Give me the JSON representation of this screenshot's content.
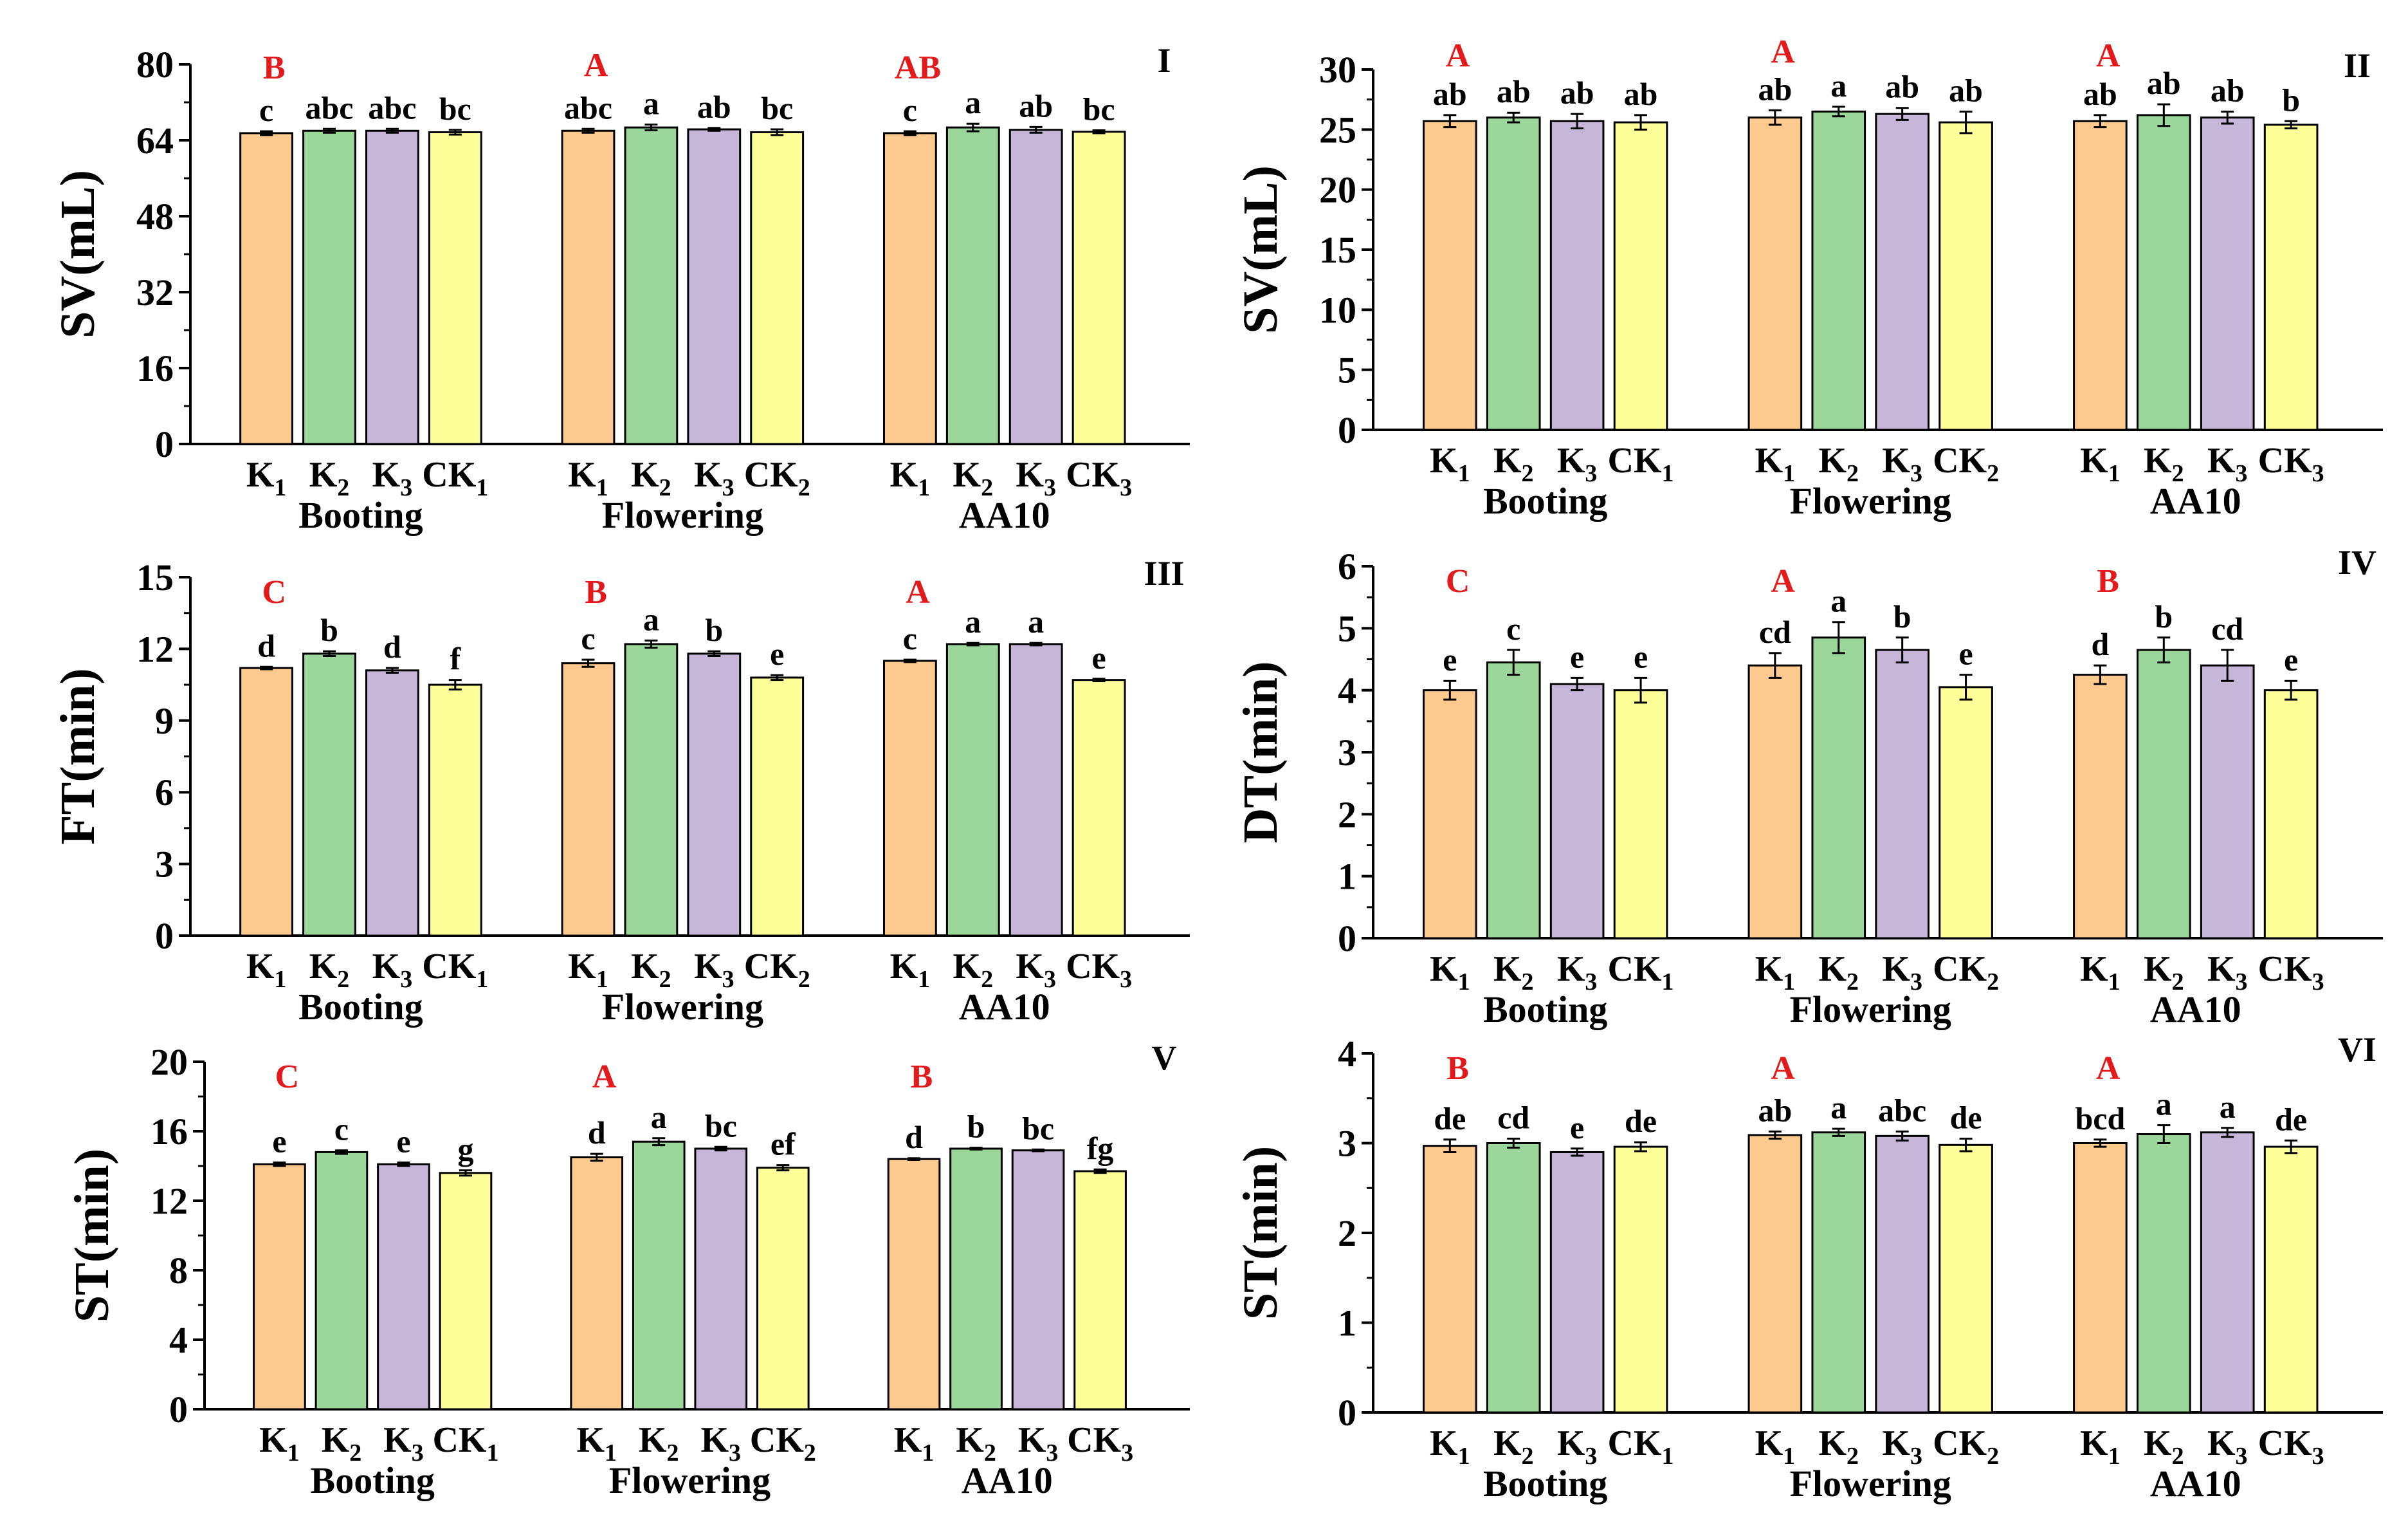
{
  "colors": {
    "K1": "#fcc98f",
    "K2": "#9bd69b",
    "K3": "#c6b6d8",
    "CK": "#ffff99",
    "group_letter": "#e31a1c"
  },
  "chart_data": [
    {
      "type": "bar",
      "panel_id": "I",
      "ylabel": "SV(mL)",
      "ylim": [
        0,
        80
      ],
      "yticks": [
        "0",
        "16",
        "32",
        "48",
        "64",
        "80"
      ],
      "groups": [
        {
          "name": "Booting",
          "group_letter": "B",
          "bars": [
            {
              "label": "K",
              "sub": "1",
              "value": 65.5,
              "err": 0.4,
              "letter": "c"
            },
            {
              "label": "K",
              "sub": "2",
              "value": 66.0,
              "err": 0.4,
              "letter": "abc"
            },
            {
              "label": "K",
              "sub": "3",
              "value": 66.0,
              "err": 0.4,
              "letter": "abc"
            },
            {
              "label": "CK",
              "sub": "1",
              "value": 65.7,
              "err": 0.5,
              "letter": "bc"
            }
          ]
        },
        {
          "name": "Flowering",
          "group_letter": "A",
          "bars": [
            {
              "label": "K",
              "sub": "1",
              "value": 66.0,
              "err": 0.4,
              "letter": "abc"
            },
            {
              "label": "K",
              "sub": "2",
              "value": 66.7,
              "err": 0.6,
              "letter": "a"
            },
            {
              "label": "K",
              "sub": "3",
              "value": 66.3,
              "err": 0.3,
              "letter": "ab"
            },
            {
              "label": "CK",
              "sub": "2",
              "value": 65.7,
              "err": 0.6,
              "letter": "bc"
            }
          ]
        },
        {
          "name": "AA10",
          "group_letter": "AB",
          "bars": [
            {
              "label": "K",
              "sub": "1",
              "value": 65.5,
              "err": 0.4,
              "letter": "c"
            },
            {
              "label": "K",
              "sub": "2",
              "value": 66.7,
              "err": 0.8,
              "letter": "a"
            },
            {
              "label": "K",
              "sub": "3",
              "value": 66.2,
              "err": 0.6,
              "letter": "ab"
            },
            {
              "label": "CK",
              "sub": "3",
              "value": 65.8,
              "err": 0.3,
              "letter": "bc"
            }
          ]
        }
      ]
    },
    {
      "type": "bar",
      "panel_id": "II",
      "ylabel": "SV(mL)",
      "ylim": [
        0,
        30
      ],
      "yticks": [
        "0",
        "5",
        "10",
        "15",
        "20",
        "25",
        "30"
      ],
      "groups": [
        {
          "name": "Booting",
          "group_letter": "A",
          "bars": [
            {
              "label": "K",
              "sub": "1",
              "value": 25.7,
              "err": 0.5,
              "letter": "ab"
            },
            {
              "label": "K",
              "sub": "2",
              "value": 26.0,
              "err": 0.4,
              "letter": "ab"
            },
            {
              "label": "K",
              "sub": "3",
              "value": 25.7,
              "err": 0.6,
              "letter": "ab"
            },
            {
              "label": "CK",
              "sub": "1",
              "value": 25.6,
              "err": 0.6,
              "letter": "ab"
            }
          ]
        },
        {
          "name": "Flowering",
          "group_letter": "A",
          "bars": [
            {
              "label": "K",
              "sub": "1",
              "value": 26.0,
              "err": 0.6,
              "letter": "ab"
            },
            {
              "label": "K",
              "sub": "2",
              "value": 26.5,
              "err": 0.4,
              "letter": "a"
            },
            {
              "label": "K",
              "sub": "3",
              "value": 26.3,
              "err": 0.5,
              "letter": "ab"
            },
            {
              "label": "CK",
              "sub": "2",
              "value": 25.6,
              "err": 0.9,
              "letter": "ab"
            }
          ]
        },
        {
          "name": "AA10",
          "group_letter": "A",
          "bars": [
            {
              "label": "K",
              "sub": "1",
              "value": 25.7,
              "err": 0.5,
              "letter": "ab"
            },
            {
              "label": "K",
              "sub": "2",
              "value": 26.2,
              "err": 0.9,
              "letter": "ab"
            },
            {
              "label": "K",
              "sub": "3",
              "value": 26.0,
              "err": 0.5,
              "letter": "ab"
            },
            {
              "label": "CK",
              "sub": "3",
              "value": 25.4,
              "err": 0.3,
              "letter": "b"
            }
          ]
        }
      ]
    },
    {
      "type": "bar",
      "panel_id": "III",
      "ylabel": "FT(min)",
      "ylim": [
        0,
        15
      ],
      "yticks": [
        "0",
        "3",
        "6",
        "9",
        "12",
        "15"
      ],
      "groups": [
        {
          "name": "Booting",
          "group_letter": "C",
          "bars": [
            {
              "label": "K",
              "sub": "1",
              "value": 11.2,
              "err": 0.05,
              "letter": "d"
            },
            {
              "label": "K",
              "sub": "2",
              "value": 11.8,
              "err": 0.1,
              "letter": "b"
            },
            {
              "label": "K",
              "sub": "3",
              "value": 11.1,
              "err": 0.1,
              "letter": "d"
            },
            {
              "label": "CK",
              "sub": "1",
              "value": 10.5,
              "err": 0.2,
              "letter": "f"
            }
          ]
        },
        {
          "name": "Flowering",
          "group_letter": "B",
          "bars": [
            {
              "label": "K",
              "sub": "1",
              "value": 11.4,
              "err": 0.15,
              "letter": "c"
            },
            {
              "label": "K",
              "sub": "2",
              "value": 12.2,
              "err": 0.15,
              "letter": "a"
            },
            {
              "label": "K",
              "sub": "3",
              "value": 11.8,
              "err": 0.1,
              "letter": "b"
            },
            {
              "label": "CK",
              "sub": "2",
              "value": 10.8,
              "err": 0.1,
              "letter": "e"
            }
          ]
        },
        {
          "name": "AA10",
          "group_letter": "A",
          "bars": [
            {
              "label": "K",
              "sub": "1",
              "value": 11.5,
              "err": 0.05,
              "letter": "c"
            },
            {
              "label": "K",
              "sub": "2",
              "value": 12.2,
              "err": 0.05,
              "letter": "a"
            },
            {
              "label": "K",
              "sub": "3",
              "value": 12.2,
              "err": 0.05,
              "letter": "a"
            },
            {
              "label": "CK",
              "sub": "3",
              "value": 10.7,
              "err": 0.05,
              "letter": "e"
            }
          ]
        }
      ]
    },
    {
      "type": "bar",
      "panel_id": "IV",
      "ylabel": "DT(min)",
      "ylim": [
        0,
        6
      ],
      "yticks": [
        "0",
        "1",
        "2",
        "3",
        "4",
        "5",
        "6"
      ],
      "groups": [
        {
          "name": "Booting",
          "group_letter": "C",
          "bars": [
            {
              "label": "K",
              "sub": "1",
              "value": 4.0,
              "err": 0.15,
              "letter": "e"
            },
            {
              "label": "K",
              "sub": "2",
              "value": 4.45,
              "err": 0.2,
              "letter": "c"
            },
            {
              "label": "K",
              "sub": "3",
              "value": 4.1,
              "err": 0.1,
              "letter": "e"
            },
            {
              "label": "CK",
              "sub": "1",
              "value": 4.0,
              "err": 0.2,
              "letter": "e"
            }
          ]
        },
        {
          "name": "Flowering",
          "group_letter": "A",
          "bars": [
            {
              "label": "K",
              "sub": "1",
              "value": 4.4,
              "err": 0.2,
              "letter": "cd"
            },
            {
              "label": "K",
              "sub": "2",
              "value": 4.85,
              "err": 0.25,
              "letter": "a"
            },
            {
              "label": "K",
              "sub": "3",
              "value": 4.65,
              "err": 0.2,
              "letter": "b"
            },
            {
              "label": "CK",
              "sub": "2",
              "value": 4.05,
              "err": 0.2,
              "letter": "e"
            }
          ]
        },
        {
          "name": "AA10",
          "group_letter": "B",
          "bars": [
            {
              "label": "K",
              "sub": "1",
              "value": 4.25,
              "err": 0.15,
              "letter": "d"
            },
            {
              "label": "K",
              "sub": "2",
              "value": 4.65,
              "err": 0.2,
              "letter": "b"
            },
            {
              "label": "K",
              "sub": "3",
              "value": 4.4,
              "err": 0.25,
              "letter": "cd"
            },
            {
              "label": "CK",
              "sub": "3",
              "value": 4.0,
              "err": 0.15,
              "letter": "e"
            }
          ]
        }
      ]
    },
    {
      "type": "bar",
      "panel_id": "V",
      "ylabel": "ST(min)",
      "ylim": [
        0,
        20
      ],
      "yticks": [
        "0",
        "4",
        "8",
        "12",
        "16",
        "20"
      ],
      "groups": [
        {
          "name": "Booting",
          "group_letter": "C",
          "bars": [
            {
              "label": "K",
              "sub": "1",
              "value": 14.1,
              "err": 0.1,
              "letter": "e"
            },
            {
              "label": "K",
              "sub": "2",
              "value": 14.8,
              "err": 0.1,
              "letter": "c"
            },
            {
              "label": "K",
              "sub": "3",
              "value": 14.1,
              "err": 0.1,
              "letter": "e"
            },
            {
              "label": "CK",
              "sub": "1",
              "value": 13.6,
              "err": 0.15,
              "letter": "g"
            }
          ]
        },
        {
          "name": "Flowering",
          "group_letter": "A",
          "bars": [
            {
              "label": "K",
              "sub": "1",
              "value": 14.5,
              "err": 0.2,
              "letter": "d"
            },
            {
              "label": "K",
              "sub": "2",
              "value": 15.4,
              "err": 0.2,
              "letter": "a"
            },
            {
              "label": "K",
              "sub": "3",
              "value": 15.0,
              "err": 0.1,
              "letter": "bc"
            },
            {
              "label": "CK",
              "sub": "2",
              "value": 13.9,
              "err": 0.15,
              "letter": "ef"
            }
          ]
        },
        {
          "name": "AA10",
          "group_letter": "B",
          "bars": [
            {
              "label": "K",
              "sub": "1",
              "value": 14.4,
              "err": 0.05,
              "letter": "d"
            },
            {
              "label": "K",
              "sub": "2",
              "value": 15.0,
              "err": 0.05,
              "letter": "b"
            },
            {
              "label": "K",
              "sub": "3",
              "value": 14.9,
              "err": 0.05,
              "letter": "bc"
            },
            {
              "label": "CK",
              "sub": "3",
              "value": 13.7,
              "err": 0.1,
              "letter": "fg"
            }
          ]
        }
      ]
    },
    {
      "type": "bar",
      "panel_id": "VI",
      "ylabel": "ST(min)",
      "ylim": [
        0,
        4
      ],
      "yticks": [
        "0",
        "1",
        "2",
        "3",
        "4"
      ],
      "groups": [
        {
          "name": "Booting",
          "group_letter": "B",
          "bars": [
            {
              "label": "K",
              "sub": "1",
              "value": 2.97,
              "err": 0.07,
              "letter": "de"
            },
            {
              "label": "K",
              "sub": "2",
              "value": 3.0,
              "err": 0.05,
              "letter": "cd"
            },
            {
              "label": "K",
              "sub": "3",
              "value": 2.9,
              "err": 0.04,
              "letter": "e"
            },
            {
              "label": "CK",
              "sub": "1",
              "value": 2.96,
              "err": 0.05,
              "letter": "de"
            }
          ]
        },
        {
          "name": "Flowering",
          "group_letter": "A",
          "bars": [
            {
              "label": "K",
              "sub": "1",
              "value": 3.09,
              "err": 0.04,
              "letter": "ab"
            },
            {
              "label": "K",
              "sub": "2",
              "value": 3.12,
              "err": 0.04,
              "letter": "a"
            },
            {
              "label": "K",
              "sub": "3",
              "value": 3.08,
              "err": 0.05,
              "letter": "abc"
            },
            {
              "label": "CK",
              "sub": "2",
              "value": 2.98,
              "err": 0.07,
              "letter": "de"
            }
          ]
        },
        {
          "name": "AA10",
          "group_letter": "A",
          "bars": [
            {
              "label": "K",
              "sub": "1",
              "value": 3.0,
              "err": 0.04,
              "letter": "bcd"
            },
            {
              "label": "K",
              "sub": "2",
              "value": 3.1,
              "err": 0.1,
              "letter": "a"
            },
            {
              "label": "K",
              "sub": "3",
              "value": 3.12,
              "err": 0.05,
              "letter": "a"
            },
            {
              "label": "CK",
              "sub": "3",
              "value": 2.96,
              "err": 0.07,
              "letter": "de"
            }
          ]
        }
      ]
    }
  ]
}
